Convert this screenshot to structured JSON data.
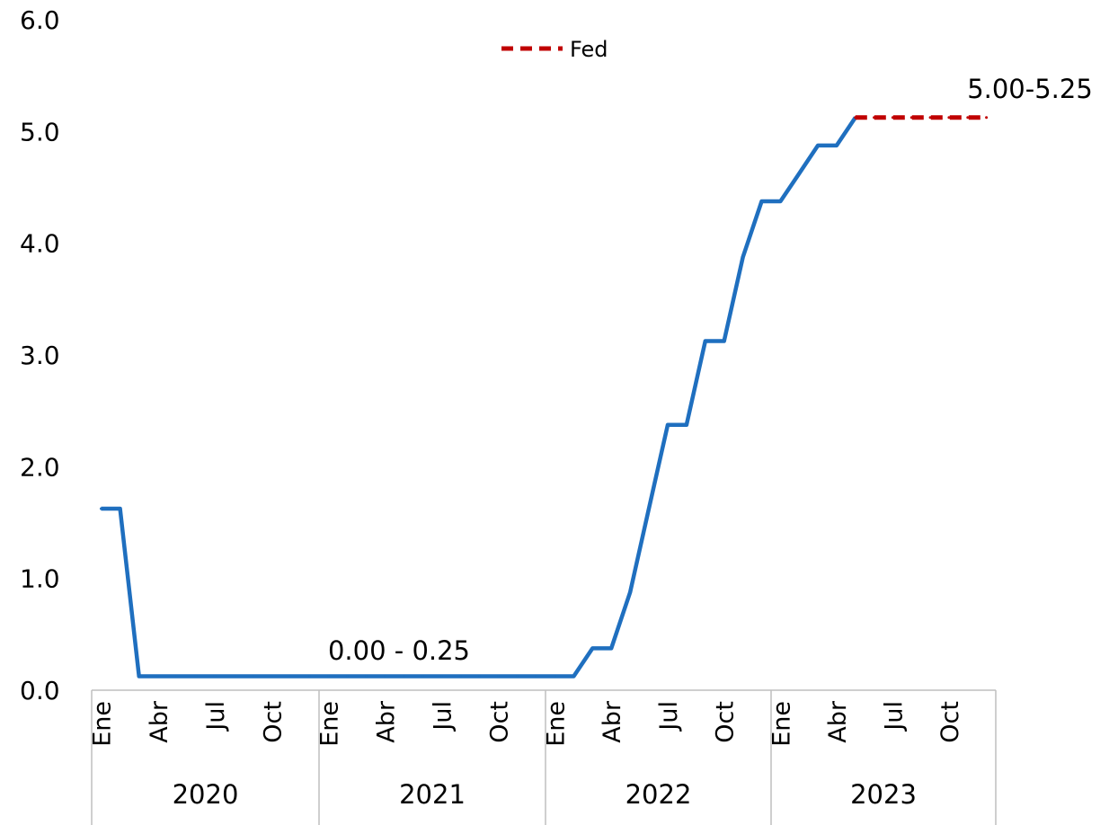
{
  "chart_data": {
    "type": "line",
    "y_ticks": [
      "0.0",
      "1.0",
      "2.0",
      "3.0",
      "4.0",
      "5.0",
      "6.0"
    ],
    "ylim": [
      0,
      6
    ],
    "grid": false,
    "month_labels": [
      "Ene",
      "Abr",
      "Jul",
      "Oct",
      "Ene",
      "Abr",
      "Jul",
      "Oct",
      "Ene",
      "Abr",
      "Jul",
      "Oct",
      "Ene",
      "Abr",
      "Jul",
      "Oct"
    ],
    "years": [
      "2020",
      "2021",
      "2022",
      "2023"
    ],
    "series": [
      {
        "name": "",
        "color": "#1f6fbf",
        "style": "solid",
        "x": [
          "2020-01",
          "2020-02",
          "2020-03",
          "2020-04",
          "2020-05",
          "2020-06",
          "2020-07",
          "2020-08",
          "2020-09",
          "2020-10",
          "2020-11",
          "2020-12",
          "2021-01",
          "2021-02",
          "2021-03",
          "2021-04",
          "2021-05",
          "2021-06",
          "2021-07",
          "2021-08",
          "2021-09",
          "2021-10",
          "2021-11",
          "2021-12",
          "2022-01",
          "2022-02",
          "2022-03",
          "2022-04",
          "2022-05",
          "2022-06",
          "2022-07",
          "2022-08",
          "2022-09",
          "2022-10",
          "2022-11",
          "2022-12",
          "2023-01",
          "2023-02",
          "2023-03",
          "2023-04",
          "2023-05"
        ],
        "values": [
          1.625,
          1.625,
          0.125,
          0.125,
          0.125,
          0.125,
          0.125,
          0.125,
          0.125,
          0.125,
          0.125,
          0.125,
          0.125,
          0.125,
          0.125,
          0.125,
          0.125,
          0.125,
          0.125,
          0.125,
          0.125,
          0.125,
          0.125,
          0.125,
          0.125,
          0.125,
          0.375,
          0.375,
          0.875,
          1.625,
          2.375,
          2.375,
          3.125,
          3.125,
          3.875,
          4.375,
          4.375,
          4.625,
          4.875,
          4.875,
          5.125
        ]
      },
      {
        "name": "Fed",
        "color": "#c00000",
        "style": "dashed",
        "x": [
          "2023-05",
          "2023-06",
          "2023-07",
          "2023-08",
          "2023-09",
          "2023-10",
          "2023-11",
          "2023-12"
        ],
        "values": [
          5.125,
          5.125,
          5.125,
          5.125,
          5.125,
          5.125,
          5.125,
          5.125
        ]
      }
    ],
    "annotations": [
      "0.00 - 0.25",
      "5.00-5.25"
    ],
    "legend": {
      "label": "Fed",
      "placement": "top-center"
    }
  }
}
